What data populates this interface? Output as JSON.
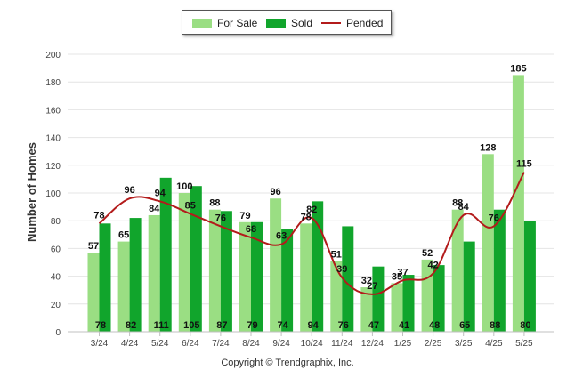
{
  "chart_data": {
    "type": "bar",
    "categories": [
      "3/24",
      "4/24",
      "5/24",
      "6/24",
      "7/24",
      "8/24",
      "9/24",
      "10/24",
      "11/24",
      "12/24",
      "1/25",
      "2/25",
      "3/25",
      "4/25",
      "5/25"
    ],
    "series": [
      {
        "name": "For Sale",
        "kind": "bar",
        "color": "#9ade83",
        "values": [
          57,
          65,
          84,
          100,
          88,
          79,
          96,
          78,
          51,
          32,
          35,
          52,
          88,
          128,
          185
        ]
      },
      {
        "name": "Sold",
        "kind": "bar",
        "color": "#11a52c",
        "values": [
          78,
          82,
          111,
          105,
          87,
          79,
          74,
          94,
          76,
          47,
          41,
          48,
          65,
          88,
          80
        ]
      },
      {
        "name": "Pended",
        "kind": "line",
        "color": "#b31b1b",
        "values": [
          78,
          96,
          94,
          85,
          76,
          68,
          63,
          82,
          39,
          27,
          37,
          42,
          84,
          76,
          115
        ]
      }
    ],
    "title": "",
    "xlabel": "",
    "ylabel": "Number of Homes",
    "ylim": [
      0,
      200
    ],
    "yticks": [
      0,
      20,
      40,
      60,
      80,
      100,
      120,
      140,
      160,
      180,
      200
    ],
    "grid": true,
    "legend_position": "top-center",
    "copyright": "Copyright © Trendgraphix, Inc."
  }
}
